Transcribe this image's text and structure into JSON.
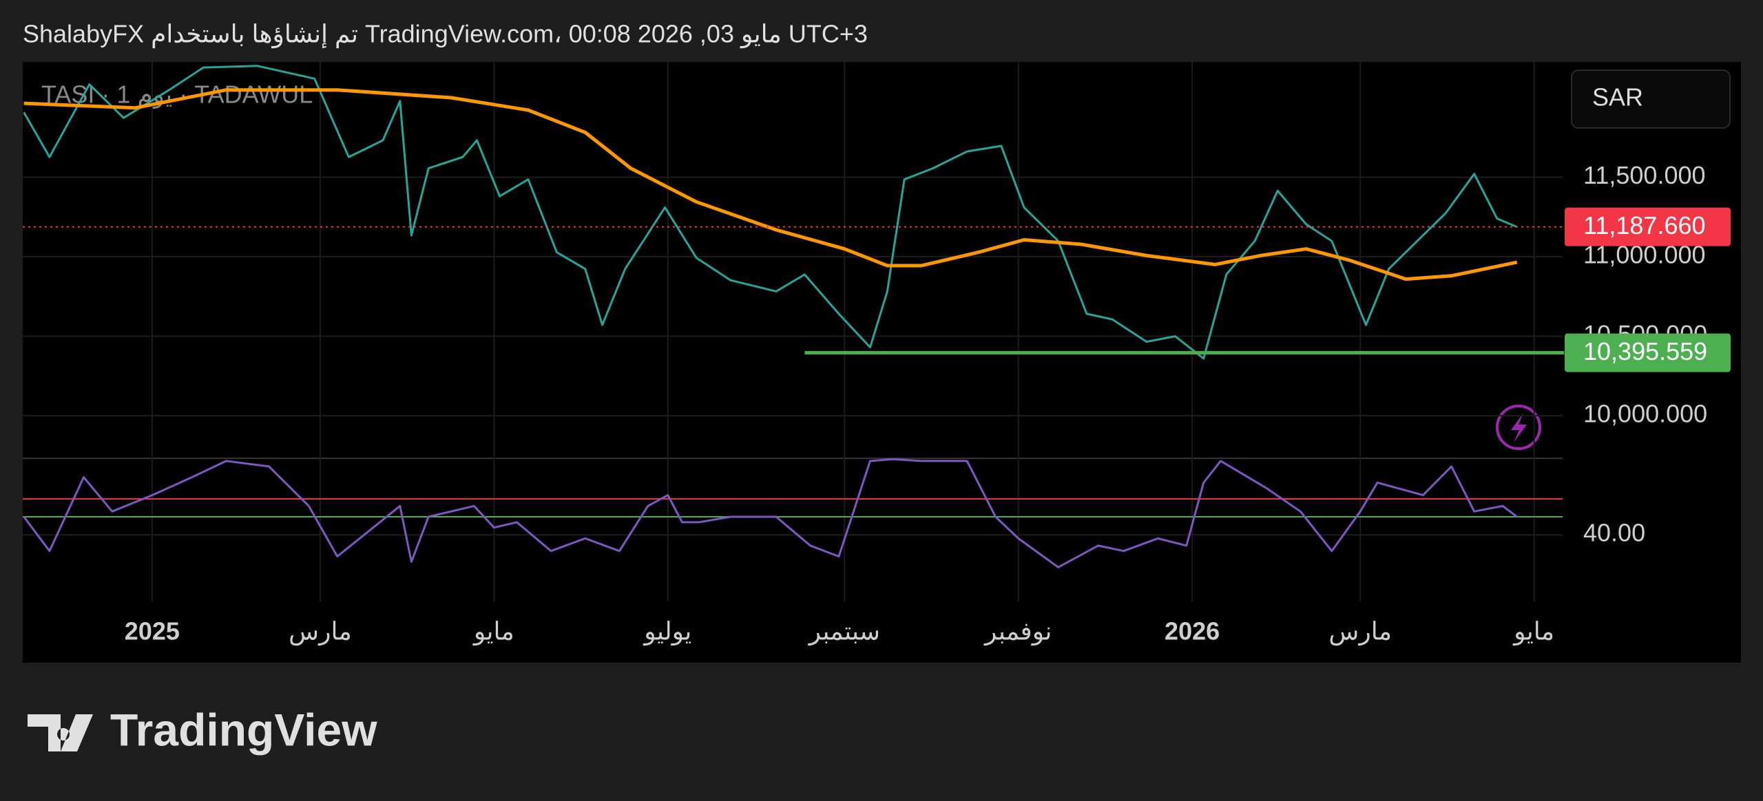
{
  "header": "ShalabyFX تم إنشاؤها باستخدام TradingView.com، 00:08 2026 ,03 مايو UTC+3",
  "logo": "TradingView",
  "chart_data": [
    {
      "type": "line",
      "title": "TASI · 1 يوم · TADAWUL",
      "currency": "SAR",
      "xlim": [
        -45.4,
        495
      ],
      "ylim": [
        9732,
        12225
      ],
      "yticks": [
        {
          "value": 10000,
          "label": "10,000.000"
        },
        {
          "value": 10500,
          "label": "10,500.000"
        },
        {
          "value": 11000,
          "label": "11,000.000"
        },
        {
          "value": 11500,
          "label": "11,500.000"
        }
      ],
      "grid": true,
      "series": [
        {
          "color": "#26a69a",
          "x": [
            -45,
            -36,
            -22,
            -10,
            6,
            18,
            37,
            57,
            69,
            81,
            87,
            91,
            97,
            109,
            114,
            122,
            132,
            142,
            152,
            158,
            166,
            180,
            191,
            203,
            219,
            229,
            241,
            252,
            258,
            264,
            274,
            286,
            298,
            306,
            318,
            328,
            337,
            349,
            359,
            369,
            377,
            387,
            395,
            405,
            414,
            422,
            426,
            434,
            444,
            454,
            464,
            472,
            479
          ],
          "values": [
            11908,
            11627,
            12084,
            11873,
            12049,
            12190,
            12200,
            12120,
            11627,
            11732,
            11979,
            11134,
            11556,
            11627,
            11732,
            11380,
            11486,
            11028,
            10923,
            10571,
            10923,
            11310,
            10993,
            10852,
            10782,
            10888,
            10641,
            10430,
            10782,
            11486,
            11556,
            11662,
            11697,
            11310,
            11099,
            10641,
            10606,
            10465,
            10500,
            10360,
            10888,
            11099,
            11415,
            11204,
            11099,
            10747,
            10571,
            10923,
            11099,
            11275,
            11521,
            11240,
            11187.66
          ]
        },
        {
          "color": "#ff9800",
          "x": [
            -45,
            -6,
            26,
            65,
            105,
            132,
            152,
            168,
            191,
            219,
            243,
            258,
            270,
            290,
            306,
            326,
            349,
            373,
            389,
            405,
            420,
            440,
            456,
            479
          ],
          "values": [
            11965,
            11936,
            12049,
            12049,
            12000,
            11922,
            11782,
            11556,
            11345,
            11169,
            11049,
            10944,
            10944,
            11028,
            11106,
            11078,
            11007,
            10951,
            11007,
            11049,
            10979,
            10859,
            10880,
            10965
          ]
        }
      ],
      "levels": [
        {
          "value": 11187.66,
          "label": "11,187.660",
          "color": "#f23645",
          "style": "dotted"
        },
        {
          "value": 10395.559,
          "label": "10,395.559",
          "color": "#4caf50",
          "style": "solid",
          "from_x": 229
        }
      ]
    },
    {
      "type": "line",
      "xlim": [
        -45.4,
        495
      ],
      "ylim": [
        3,
        82.5
      ],
      "yticks": [
        {
          "value": 40,
          "label": "40.00"
        }
      ],
      "xticks": [
        {
          "value": 0,
          "label": "2025"
        },
        {
          "value": 59,
          "label": "مارس"
        },
        {
          "value": 120,
          "label": "مايو"
        },
        {
          "value": 181,
          "label": "يوليو"
        },
        {
          "value": 243,
          "label": "سبتمبر"
        },
        {
          "value": 304,
          "label": "نوفمبر"
        },
        {
          "value": 365,
          "label": "2026"
        },
        {
          "value": 424,
          "label": "مارس"
        },
        {
          "value": 485,
          "label": "مايو"
        }
      ],
      "bands": [
        {
          "value": 60,
          "color": "#f23645"
        },
        {
          "value": 50,
          "color": "#4caf50"
        }
      ],
      "series": [
        {
          "color": "#7e57c2",
          "x": [
            -45,
            -36,
            -24,
            -14,
            0,
            14,
            26,
            41,
            55,
            65,
            87,
            91,
            97,
            113,
            120,
            128,
            140,
            152,
            164,
            174,
            181,
            186,
            192,
            203,
            219,
            231,
            241,
            252,
            260,
            270,
            286,
            296,
            304,
            318,
            332,
            341,
            353,
            363,
            369,
            375,
            391,
            403,
            414,
            424,
            430,
            446,
            456,
            464,
            474,
            479
          ],
          "values": [
            50,
            31,
            72,
            53,
            62,
            72,
            81,
            78,
            56,
            28,
            56,
            25,
            50,
            56,
            44,
            47,
            31,
            38,
            31,
            56,
            62,
            47,
            47,
            50,
            50,
            34,
            28,
            81,
            82,
            81,
            81,
            50,
            38,
            22,
            34,
            31,
            38,
            34,
            69,
            81,
            66,
            53,
            31,
            53,
            69,
            62,
            78,
            53,
            56,
            50
          ]
        }
      ]
    }
  ]
}
